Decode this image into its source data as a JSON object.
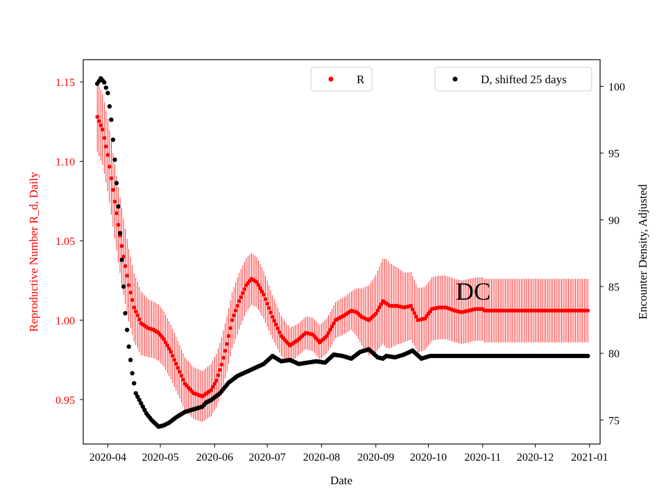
{
  "chart_data": {
    "type": "scatter",
    "annotation": "DC",
    "xlabel": "Date",
    "ylabel_left": "Reproductive Number R_d, Daily",
    "ylabel_right": "Encounter Density, Adjusted",
    "x_ticks": [
      "2020-04",
      "2020-05",
      "2020-06",
      "2020-07",
      "2020-08",
      "2020-09",
      "2020-10",
      "2020-11",
      "2020-12",
      "2021-01"
    ],
    "y_left_ticks": [
      "0.95",
      "1.00",
      "1.05",
      "1.10",
      "1.15"
    ],
    "y_right_ticks": [
      "75",
      "80",
      "85",
      "90",
      "95",
      "100"
    ],
    "y_left_range": [
      0.922,
      1.164
    ],
    "y_right_range": [
      73.2,
      102.0
    ],
    "x_range_days_from_2020_03_01": [
      17,
      312
    ],
    "colors": {
      "R": "#ff0000",
      "D": "#000000",
      "left_axis": "#ff0000",
      "right_axis": "#000000"
    },
    "legend": [
      {
        "label": "R",
        "color": "#ff0000",
        "position": "top-center"
      },
      {
        "label": "D, shifted 25 days",
        "color": "#000000",
        "position": "top-right"
      }
    ],
    "series": [
      {
        "name": "R",
        "axis": "left",
        "x_start": "2020-03-26",
        "x_end": "2020-12-31",
        "keyframes_day_from_2020_03_01": [
          25,
          28,
          31,
          34,
          37,
          40,
          43,
          46,
          50,
          54,
          57,
          60,
          63,
          67,
          71,
          75,
          80,
          85,
          90,
          93,
          96,
          99,
          102,
          106,
          110,
          113,
          116,
          120,
          125,
          130,
          135,
          140,
          144,
          148,
          152,
          156,
          161,
          166,
          170,
          173,
          176,
          180,
          184,
          188,
          192,
          196,
          200,
          204,
          208,
          212,
          216,
          220,
          224,
          229,
          233,
          237,
          241,
          245,
          246,
          250,
          255,
          260,
          265,
          270,
          275,
          280,
          285,
          290,
          295,
          300,
          306
        ],
        "keyframes_value": [
          1.128,
          1.12,
          1.104,
          1.082,
          1.06,
          1.04,
          1.022,
          1.008,
          0.998,
          0.995,
          0.994,
          0.992,
          0.988,
          0.98,
          0.97,
          0.96,
          0.954,
          0.952,
          0.956,
          0.962,
          0.972,
          0.985,
          1.0,
          1.012,
          1.022,
          1.026,
          1.024,
          1.016,
          1.002,
          0.99,
          0.984,
          0.988,
          0.992,
          0.991,
          0.986,
          0.99,
          1.0,
          1.003,
          1.006,
          1.005,
          1.002,
          1.0,
          1.004,
          1.012,
          1.009,
          1.009,
          1.008,
          1.009,
          1.0,
          1.001,
          1.007,
          1.008,
          1.008,
          1.006,
          1.005,
          1.006,
          1.007,
          1.007,
          1.006,
          1.006,
          1.006,
          1.006,
          1.006,
          1.006,
          1.006,
          1.006,
          1.006,
          1.006,
          1.006,
          1.006,
          1.006
        ],
        "error_halfwidth_keyframes_day": [
          25,
          40,
          55,
          85,
          105,
          120,
          140,
          170,
          180,
          190,
          200,
          210,
          240,
          306
        ],
        "error_halfwidth_value": [
          0.022,
          0.024,
          0.018,
          0.016,
          0.018,
          0.015,
          0.01,
          0.012,
          0.022,
          0.028,
          0.022,
          0.02,
          0.02,
          0.02
        ]
      },
      {
        "name": "D, shifted 25 days",
        "axis": "right",
        "x_start": "2020-03-26",
        "x_end": "2020-12-31",
        "keyframes_day_from_2020_03_01": [
          25,
          27,
          29,
          31,
          33,
          35,
          37,
          39,
          41,
          43,
          45,
          47,
          49,
          51,
          53,
          56,
          60,
          63,
          66,
          70,
          75,
          80,
          85,
          87,
          90,
          95,
          100,
          105,
          110,
          115,
          120,
          125,
          130,
          135,
          140,
          145,
          150,
          155,
          160,
          165,
          170,
          175,
          180,
          185,
          188,
          190,
          195,
          200,
          205,
          210,
          215,
          220,
          225,
          230,
          235,
          240,
          245,
          306
        ],
        "keyframes_value": [
          100.2,
          100.6,
          100.3,
          99.5,
          97.5,
          94.5,
          91.0,
          87.0,
          83.0,
          80.5,
          78.5,
          77.0,
          76.5,
          76.0,
          75.5,
          75.0,
          74.5,
          74.6,
          74.8,
          75.2,
          75.6,
          75.8,
          76.0,
          76.3,
          76.5,
          77.0,
          77.8,
          78.3,
          78.6,
          78.9,
          79.2,
          79.8,
          79.4,
          79.5,
          79.2,
          79.3,
          79.4,
          79.3,
          79.9,
          79.8,
          79.6,
          80.1,
          80.3,
          79.7,
          79.6,
          79.8,
          79.7,
          79.9,
          80.2,
          79.6,
          79.8,
          79.8,
          79.8,
          79.8,
          79.8,
          79.8,
          79.8,
          79.8
        ]
      }
    ]
  }
}
